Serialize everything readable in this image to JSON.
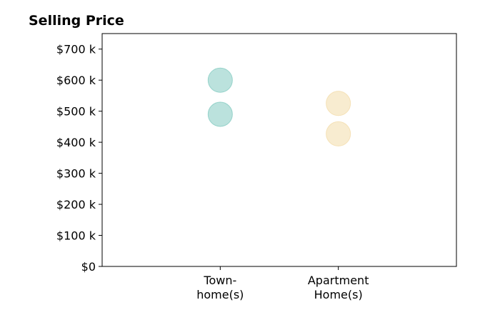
{
  "chart_data": {
    "type": "scatter",
    "title": "Selling Price",
    "xlabel": "",
    "ylabel": "",
    "categories": [
      [
        "Town-",
        "home(s)"
      ],
      [
        "Apartment",
        "Home(s)"
      ]
    ],
    "x_range": [
      -1,
      2
    ],
    "ylim": [
      0,
      750
    ],
    "y_ticks": [
      {
        "value": 0,
        "label": "$0"
      },
      {
        "value": 100,
        "label": "$100 k"
      },
      {
        "value": 200,
        "label": "$200 k"
      },
      {
        "value": 300,
        "label": "$300 k"
      },
      {
        "value": 400,
        "label": "$400 k"
      },
      {
        "value": 500,
        "label": "$500 k"
      },
      {
        "value": 600,
        "label": "$600 k"
      },
      {
        "value": 700,
        "label": "$700 k"
      }
    ],
    "series": [
      {
        "category_index": 0,
        "values": [
          600,
          490
        ],
        "color": "#8ecfc7"
      },
      {
        "category_index": 1,
        "values": [
          525,
          427
        ],
        "color": "#f4dfb1"
      }
    ],
    "grid": false,
    "legend": "none"
  }
}
